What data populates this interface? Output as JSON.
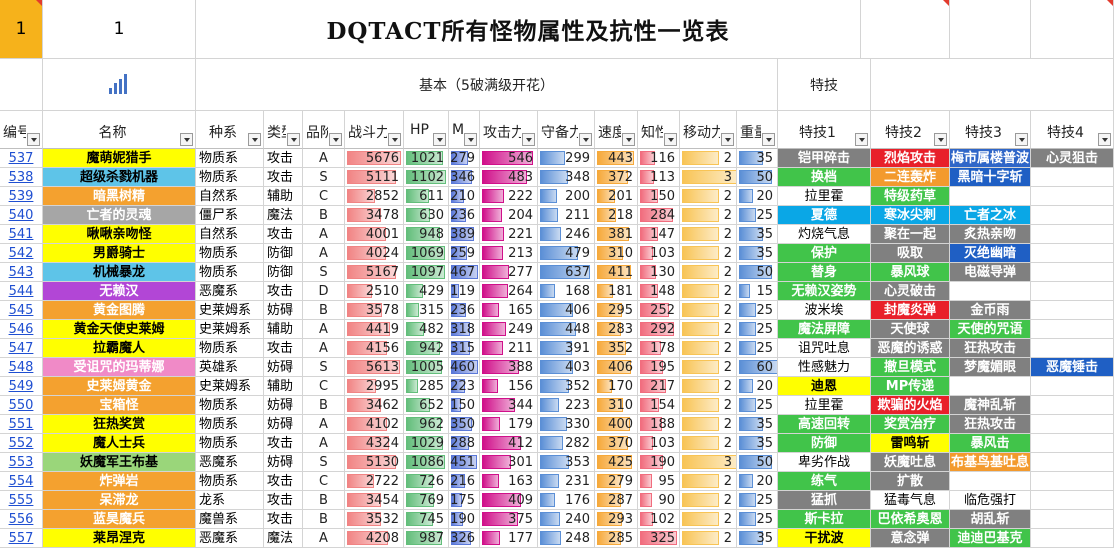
{
  "cell_a1": "1",
  "cell_b1": "1",
  "title": "DQTACT所有怪物属性及抗性一览表",
  "group_basic": "基本（5破满级开花）",
  "group_skill": "特技",
  "icons": {
    "chart": "bar-chart-icon",
    "filter": "filter-dropdown-icon"
  },
  "colors": {
    "power_bar": "#f18484",
    "hp_bar": "#63be7b",
    "mp_bar": "#5a78d8",
    "atk_bar": "#d0108a",
    "def_bar": "#5b8fd6",
    "spd_bar": "#f6a93b",
    "int_bar": "#f16d7e",
    "move_bar": "#f8c455",
    "weight_bar": "#5b8fd6"
  },
  "columns": [
    "编号",
    "名称",
    "种系",
    "类型",
    "品阶",
    "战斗力",
    "HP",
    "MP",
    "攻击力",
    "守备力",
    "速度",
    "知性",
    "移动力",
    "重量",
    "特技1",
    "特技2",
    "特技3",
    "特技4"
  ],
  "rows": [
    {
      "id": "537",
      "name": "魔萌妮猎手",
      "race": "物质系",
      "type": "攻击",
      "rank": "A",
      "power": 5676,
      "hp": 1021,
      "mp": 279,
      "atk": 546,
      "def": 299,
      "spd": 443,
      "int": 116,
      "move": 2,
      "weight": 35,
      "s1": "铠甲碎击",
      "s2": "烈焰攻击",
      "s3": "梅市属楼普波",
      "s4": "心灵狙击"
    },
    {
      "id": "538",
      "name": "超级杀戮机器",
      "race": "物质系",
      "type": "攻击",
      "rank": "S",
      "power": 5111,
      "hp": 1102,
      "mp": 346,
      "atk": 483,
      "def": 348,
      "spd": 372,
      "int": 113,
      "move": 3,
      "weight": 50,
      "s1": "换档",
      "s2": "二连轰炸",
      "s3": "黑暗十字斩",
      "s4": ""
    },
    {
      "id": "539",
      "name": "暗黑树精",
      "race": "自然系",
      "type": "辅助",
      "rank": "C",
      "power": 2852,
      "hp": 611,
      "mp": 210,
      "atk": 222,
      "def": 200,
      "spd": 201,
      "int": 150,
      "move": 2,
      "weight": 20,
      "s1": "拉里霍",
      "s2": "特级药草",
      "s3": "",
      "s4": ""
    },
    {
      "id": "540",
      "name": "亡者的灵魂",
      "race": "僵尸系",
      "type": "魔法",
      "rank": "B",
      "power": 3478,
      "hp": 630,
      "mp": 236,
      "atk": 204,
      "def": 211,
      "spd": 218,
      "int": 284,
      "move": 2,
      "weight": 25,
      "s1": "夏德",
      "s2": "寒冰尖刺",
      "s3": "亡者之冰",
      "s4": ""
    },
    {
      "id": "541",
      "name": "啾啾亲吻怪",
      "race": "自然系",
      "type": "攻击",
      "rank": "A",
      "power": 4001,
      "hp": 948,
      "mp": 389,
      "atk": 221,
      "def": 246,
      "spd": 381,
      "int": 147,
      "move": 2,
      "weight": 35,
      "s1": "灼烧气息",
      "s2": "聚在一起",
      "s3": "炙热亲吻",
      "s4": ""
    },
    {
      "id": "542",
      "name": "男爵骑士",
      "race": "物质系",
      "type": "防御",
      "rank": "A",
      "power": 4024,
      "hp": 1069,
      "mp": 259,
      "atk": 213,
      "def": 479,
      "spd": 310,
      "int": 103,
      "move": 2,
      "weight": 35,
      "s1": "保护",
      "s2": "吸取",
      "s3": "灭绝幽暗",
      "s4": ""
    },
    {
      "id": "543",
      "name": "机械暴龙",
      "race": "物质系",
      "type": "防御",
      "rank": "S",
      "power": 5167,
      "hp": 1097,
      "mp": 467,
      "atk": 277,
      "def": 637,
      "spd": 411,
      "int": 130,
      "move": 2,
      "weight": 50,
      "s1": "替身",
      "s2": "暴风球",
      "s3": "电磁导弹",
      "s4": ""
    },
    {
      "id": "544",
      "name": "无赖汉",
      "race": "恶魔系",
      "type": "攻击",
      "rank": "D",
      "power": 2510,
      "hp": 429,
      "mp": 119,
      "atk": 264,
      "def": 168,
      "spd": 181,
      "int": 148,
      "move": 2,
      "weight": 15,
      "s1": "无赖汉姿势",
      "s2": "心灵破击",
      "s3": "",
      "s4": ""
    },
    {
      "id": "545",
      "name": "黄金图腾",
      "race": "史莱姆系",
      "type": "妨碍",
      "rank": "B",
      "power": 3578,
      "hp": 315,
      "mp": 236,
      "atk": 165,
      "def": 406,
      "spd": 295,
      "int": 252,
      "move": 2,
      "weight": 25,
      "s1": "波米埃",
      "s2": "封魔炎弹",
      "s3": "金币雨",
      "s4": ""
    },
    {
      "id": "546",
      "name": "黄金天使史莱姆",
      "race": "史莱姆系",
      "type": "辅助",
      "rank": "A",
      "power": 4419,
      "hp": 482,
      "mp": 318,
      "atk": 249,
      "def": 448,
      "spd": 283,
      "int": 292,
      "move": 2,
      "weight": 25,
      "s1": "魔法屏障",
      "s2": "天使球",
      "s3": "天使的咒语",
      "s4": ""
    },
    {
      "id": "547",
      "name": "拉霸魔人",
      "race": "物质系",
      "type": "攻击",
      "rank": "A",
      "power": 4156,
      "hp": 942,
      "mp": 315,
      "atk": 211,
      "def": 391,
      "spd": 352,
      "int": 178,
      "move": 2,
      "weight": 25,
      "s1": "诅咒吐息",
      "s2": "恶魔的诱惑",
      "s3": "狂热攻击",
      "s4": ""
    },
    {
      "id": "548",
      "name": "受诅咒的玛蒂娜",
      "race": "英雄系",
      "type": "妨碍",
      "rank": "S",
      "power": 5613,
      "hp": 1005,
      "mp": 460,
      "atk": 388,
      "def": 403,
      "spd": 406,
      "int": 195,
      "move": 2,
      "weight": 60,
      "s1": "性感魅力",
      "s2": "撤旦模式",
      "s3": "梦魔媚眼",
      "s4": "恶魔锤击"
    },
    {
      "id": "549",
      "name": "史莱姆黄金",
      "race": "史莱姆系",
      "type": "辅助",
      "rank": "C",
      "power": 2995,
      "hp": 285,
      "mp": 223,
      "atk": 156,
      "def": 352,
      "spd": 170,
      "int": 217,
      "move": 2,
      "weight": 20,
      "s1": "迪恩",
      "s2": "MP传递",
      "s3": "",
      "s4": ""
    },
    {
      "id": "550",
      "name": "宝箱怪",
      "race": "物质系",
      "type": "妨碍",
      "rank": "B",
      "power": 3462,
      "hp": 652,
      "mp": 150,
      "atk": 344,
      "def": 223,
      "spd": 310,
      "int": 154,
      "move": 2,
      "weight": 25,
      "s1": "拉里霍",
      "s2": "欺骗的火焰",
      "s3": "魔神乱斩",
      "s4": ""
    },
    {
      "id": "551",
      "name": "狂热奖赏",
      "race": "物质系",
      "type": "妨碍",
      "rank": "A",
      "power": 4102,
      "hp": 962,
      "mp": 350,
      "atk": 179,
      "def": 330,
      "spd": 400,
      "int": 188,
      "move": 2,
      "weight": 35,
      "s1": "高速回转",
      "s2": "奖赏治疗",
      "s3": "狂热攻击",
      "s4": ""
    },
    {
      "id": "552",
      "name": "魔人士兵",
      "race": "物质系",
      "type": "攻击",
      "rank": "A",
      "power": 4324,
      "hp": 1029,
      "mp": 288,
      "atk": 412,
      "def": 282,
      "spd": 370,
      "int": 103,
      "move": 2,
      "weight": 35,
      "s1": "防御",
      "s2": "雷鸣斩",
      "s3": "暴风击",
      "s4": ""
    },
    {
      "id": "553",
      "name": "妖魔军王布基",
      "race": "恶魔系",
      "type": "妨碍",
      "rank": "S",
      "power": 5130,
      "hp": 1086,
      "mp": 451,
      "atk": 301,
      "def": 353,
      "spd": 425,
      "int": 190,
      "move": 3,
      "weight": 50,
      "s1": "卑劣作战",
      "s2": "妖魔吐息",
      "s3": "布基鸟基吐息",
      "s4": ""
    },
    {
      "id": "554",
      "name": "炸弹岩",
      "race": "物质系",
      "type": "攻击",
      "rank": "C",
      "power": 2722,
      "hp": 726,
      "mp": 216,
      "atk": 163,
      "def": 231,
      "spd": 279,
      "int": 95,
      "move": 2,
      "weight": 20,
      "s1": "练气",
      "s2": "扩散",
      "s3": "",
      "s4": ""
    },
    {
      "id": "555",
      "name": "呆滞龙",
      "race": "龙系",
      "type": "攻击",
      "rank": "B",
      "power": 3454,
      "hp": 769,
      "mp": 175,
      "atk": 409,
      "def": 176,
      "spd": 287,
      "int": 90,
      "move": 2,
      "weight": 25,
      "s1": "猛抓",
      "s2": "猛毒气息",
      "s3": "临危强打",
      "s4": ""
    },
    {
      "id": "556",
      "name": "蓝昊魔兵",
      "race": "魔兽系",
      "type": "攻击",
      "rank": "B",
      "power": 3532,
      "hp": 745,
      "mp": 190,
      "atk": 375,
      "def": 240,
      "spd": 293,
      "int": 102,
      "move": 2,
      "weight": 25,
      "s1": "斯卡拉",
      "s2": "巴依希奥恩",
      "s3": "胡乱斩",
      "s4": ""
    },
    {
      "id": "557",
      "name": "莱昂涅克",
      "race": "恶魔系",
      "type": "魔法",
      "rank": "A",
      "power": 4208,
      "hp": 987,
      "mp": 326,
      "atk": 177,
      "def": 248,
      "spd": 285,
      "int": 325,
      "move": 2,
      "weight": 35,
      "s1": "干扰波",
      "s2": "意念弹",
      "s3": "迪迪巴基克",
      "s4": ""
    }
  ],
  "name_colors": {
    "537": "#ffff00",
    "538": "#5ec4e8",
    "539": "#f4a12f",
    "540": "#a6a6a6",
    "541": "#ffff00",
    "542": "#ffff00",
    "543": "#5ec4e8",
    "544": "#b246d6",
    "545": "#f4a12f",
    "546": "#ffff00",
    "547": "#ffff00",
    "548": "#f08ac7",
    "549": "#f4a12f",
    "550": "#f4a12f",
    "551": "#ffff00",
    "552": "#ffff00",
    "553": "#9ad67a",
    "554": "#f4a12f",
    "555": "#f4a12f",
    "556": "#f4a12f",
    "557": "#ffff00"
  },
  "skill_colors": {
    "537": [
      "#808080",
      "#e8202a",
      "#2f66c8",
      "#808080"
    ],
    "538": [
      "#41c44a",
      "#f39a2d",
      "#1f5fc4",
      ""
    ],
    "539": [
      "#ffffff",
      "#41c44a",
      "",
      ""
    ],
    "540": [
      "#0aa7e6",
      "#0aa7e6",
      "#0aa7e6",
      ""
    ],
    "541": [
      "#ffffff",
      "#808080",
      "#808080",
      ""
    ],
    "542": [
      "#41c44a",
      "#808080",
      "#1f5fc4",
      ""
    ],
    "543": [
      "#41c44a",
      "#41c44a",
      "#808080",
      ""
    ],
    "544": [
      "#41c44a",
      "#808080",
      "",
      ""
    ],
    "545": [
      "#ffffff",
      "#e8202a",
      "#808080",
      ""
    ],
    "546": [
      "#41c44a",
      "#808080",
      "#41c44a",
      ""
    ],
    "547": [
      "#ffffff",
      "#808080",
      "#808080",
      ""
    ],
    "548": [
      "#ffffff",
      "#41c44a",
      "#808080",
      "#1f5fc4"
    ],
    "549": [
      "#ffff00",
      "#41c44a",
      "",
      ""
    ],
    "550": [
      "#ffffff",
      "#e8202a",
      "#808080",
      ""
    ],
    "551": [
      "#41c44a",
      "#41c44a",
      "#808080",
      ""
    ],
    "552": [
      "#41c44a",
      "#ffff00",
      "#41c44a",
      ""
    ],
    "553": [
      "#ffffff",
      "#808080",
      "#f39a2d",
      ""
    ],
    "554": [
      "#41c44a",
      "#808080",
      "",
      ""
    ],
    "555": [
      "#808080",
      "#ffffff",
      "#ffffff",
      ""
    ],
    "556": [
      "#41c44a",
      "#41c44a",
      "#808080",
      ""
    ],
    "557": [
      "#ffff00",
      "#808080",
      "#41c44a",
      ""
    ]
  }
}
